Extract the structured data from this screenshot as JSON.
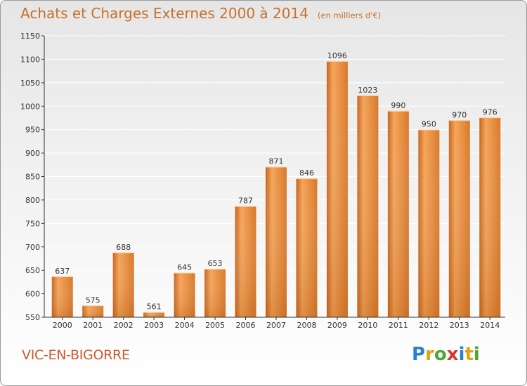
{
  "header": {
    "title": "Achats et Charges Externes 2000 à 2014",
    "subtitle": "(en milliers d'€)"
  },
  "footer": {
    "commune": "VIC-EN-BIGORRE",
    "logo": [
      "P",
      "r",
      "o",
      "x",
      "i",
      "t",
      "i"
    ],
    "logo_colors": [
      "#2a7fd4",
      "#e8a010",
      "#4aa832",
      "#d43a2a",
      "#2a7fd4",
      "#e8a010",
      "#4aa832"
    ]
  },
  "colors": {
    "bar_light": "#f5a55a",
    "bar_dark": "#d06e1e",
    "axis": "#333333",
    "grid": "#ffffff",
    "title": "#c8702a",
    "commune": "#d0582a"
  },
  "chart_data": {
    "type": "bar",
    "title": "Achats et Charges Externes 2000 à 2014",
    "subtitle": "(en milliers d'€)",
    "categories": [
      "2000",
      "2001",
      "2002",
      "2003",
      "2004",
      "2005",
      "2006",
      "2007",
      "2008",
      "2009",
      "2010",
      "2011",
      "2012",
      "2013",
      "2014"
    ],
    "values": [
      637,
      575,
      688,
      561,
      645,
      653,
      787,
      871,
      846,
      1096,
      1023,
      990,
      950,
      970,
      976
    ],
    "ylim": [
      550,
      1150
    ],
    "yticks": [
      550,
      600,
      650,
      700,
      750,
      800,
      850,
      900,
      950,
      1000,
      1050,
      1100,
      1150
    ],
    "grid": true,
    "data_labels": true
  }
}
